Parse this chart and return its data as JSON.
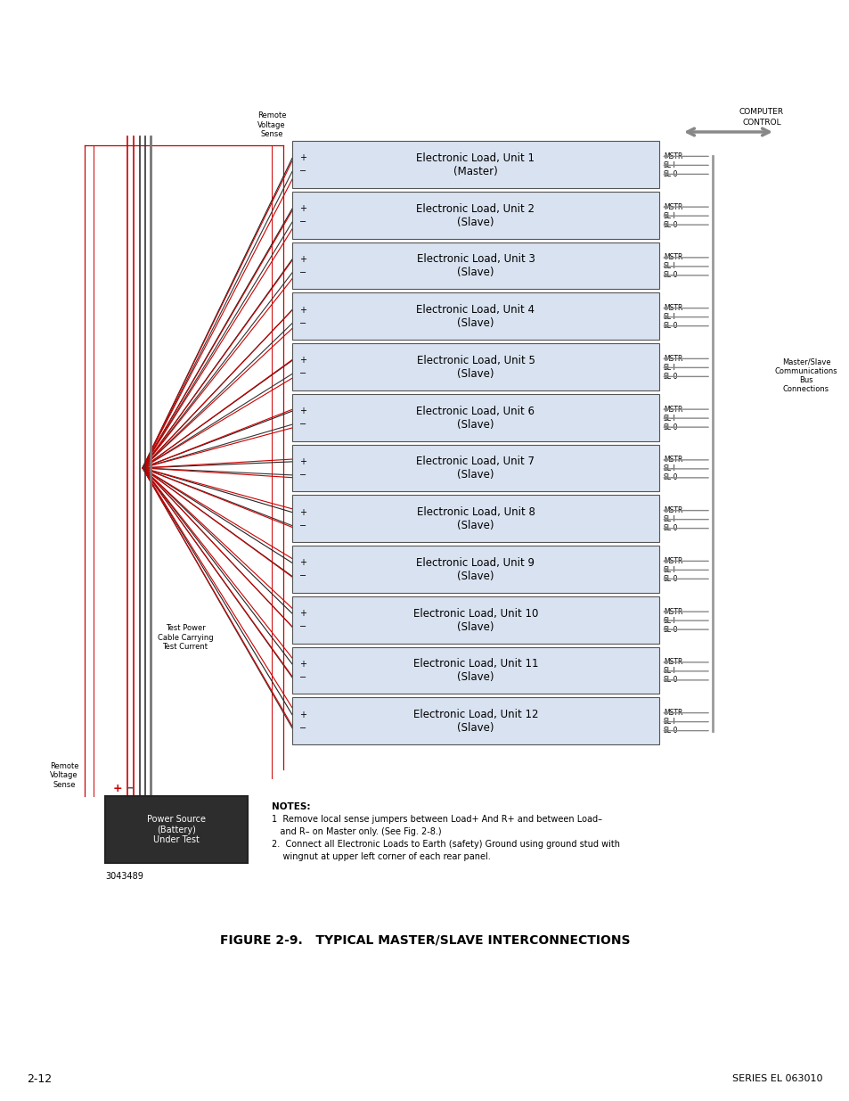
{
  "title": "FIGURE 2-9.   TYPICAL MASTER/SLAVE INTERCONNECTIONS",
  "fig_width": 9.54,
  "fig_height": 12.35,
  "background_color": "#ffffff",
  "units": [
    {
      "name": "Electronic Load, Unit 1",
      "sub": "(Master)"
    },
    {
      "name": "Electronic Load, Unit 2",
      "sub": "(Slave)"
    },
    {
      "name": "Electronic Load, Unit 3",
      "sub": "(Slave)"
    },
    {
      "name": "Electronic Load, Unit 4",
      "sub": "(Slave)"
    },
    {
      "name": "Electronic Load, Unit 5",
      "sub": "(Slave)"
    },
    {
      "name": "Electronic Load, Unit 6",
      "sub": "(Slave)"
    },
    {
      "name": "Electronic Load, Unit 7",
      "sub": "(Slave)"
    },
    {
      "name": "Electronic Load, Unit 8",
      "sub": "(Slave)"
    },
    {
      "name": "Electronic Load, Unit 9",
      "sub": "(Slave)"
    },
    {
      "name": "Electronic Load, Unit 10",
      "sub": "(Slave)"
    },
    {
      "name": "Electronic Load, Unit 11",
      "sub": "(Slave)"
    },
    {
      "name": "Electronic Load, Unit 12",
      "sub": "(Slave)"
    }
  ],
  "box_fill": "#d9e2f0",
  "box_edge": "#555555",
  "notes_line1": "NOTES:",
  "notes_line2": "1  Remove local sense jumpers between Load+ And R+ and between Load–",
  "notes_line3": "   and R– on Master only. (See Fig. 2-8.)",
  "notes_line4": "2.  Connect all Electronic Loads to Earth (safety) Ground using ground stud with",
  "notes_line5": "    wingnut at upper left corner of each rear panel.",
  "page_number": "2-12",
  "series_text": "SERIES EL 063010",
  "power_source_label": "Power Source\n(Battery)\nUnder Test",
  "part_number": "3043489",
  "remote_voltage_sense_top": "Remote\nVoltage\nSense",
  "remote_voltage_sense_bottom": "Remote\nVoltage\nSense",
  "test_power_label": "Test Power\nCable Carrying\nTest Current",
  "computer_control_line1": "COMPUTER",
  "computer_control_line2": "CONTROL",
  "master_slave_bus": "Master/Slave\nCommunications\nBus\nConnections"
}
